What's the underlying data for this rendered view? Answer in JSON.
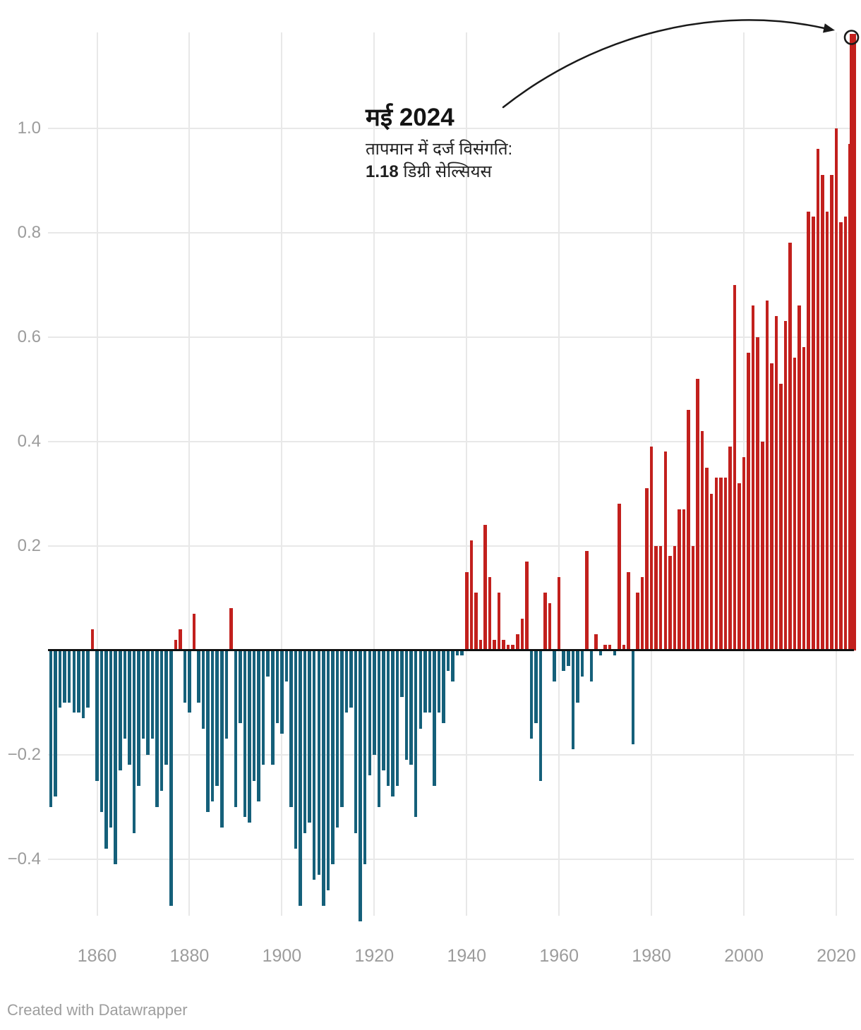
{
  "annotation": {
    "title": "मई 2024",
    "line1": "तापमान में दर्ज विसंगति:",
    "value_bold": "1.18",
    "value_suffix": " डिग्री सेल्सियस"
  },
  "footer": {
    "credit": "Created with Datawrapper"
  },
  "chart_data": {
    "type": "bar",
    "title": "मई 2024",
    "subtitle": "तापमान में दर्ज विसंगति: 1.18 डिग्री सेल्सियस",
    "xlabel": "",
    "ylabel": "",
    "x_start": 1850,
    "x_end": 2024,
    "ylim": [
      -0.55,
      1.2
    ],
    "grid": true,
    "legend": "none",
    "highlight_year": 2024,
    "highlight_value": 1.18,
    "y_ticks": [
      {
        "v": 1.0,
        "label": "1.0"
      },
      {
        "v": 0.8,
        "label": "0.8"
      },
      {
        "v": 0.6,
        "label": "0.6"
      },
      {
        "v": 0.4,
        "label": "0.4"
      },
      {
        "v": 0.2,
        "label": "0.2"
      },
      {
        "v": -0.2,
        "label": "−0.2"
      },
      {
        "v": -0.4,
        "label": "−0.4"
      }
    ],
    "x_ticks": [
      {
        "v": 1860,
        "label": "1860"
      },
      {
        "v": 1880,
        "label": "1880"
      },
      {
        "v": 1900,
        "label": "1900"
      },
      {
        "v": 1920,
        "label": "1920"
      },
      {
        "v": 1940,
        "label": "1940"
      },
      {
        "v": 1960,
        "label": "1960"
      },
      {
        "v": 1980,
        "label": "1980"
      },
      {
        "v": 2000,
        "label": "2000"
      },
      {
        "v": 2020,
        "label": "2020"
      }
    ],
    "values": [
      -0.3,
      -0.28,
      -0.11,
      -0.1,
      -0.1,
      -0.12,
      -0.12,
      -0.13,
      -0.11,
      0.04,
      -0.25,
      -0.31,
      -0.38,
      -0.34,
      -0.41,
      -0.23,
      -0.17,
      -0.22,
      -0.35,
      -0.26,
      -0.17,
      -0.2,
      -0.17,
      -0.3,
      -0.27,
      -0.22,
      -0.49,
      0.02,
      0.04,
      -0.1,
      -0.12,
      0.07,
      -0.1,
      -0.15,
      -0.31,
      -0.29,
      -0.26,
      -0.34,
      -0.17,
      0.08,
      -0.3,
      -0.14,
      -0.32,
      -0.33,
      -0.25,
      -0.29,
      -0.22,
      -0.05,
      -0.22,
      -0.14,
      -0.16,
      -0.06,
      -0.3,
      -0.38,
      -0.49,
      -0.35,
      -0.33,
      -0.44,
      -0.43,
      -0.49,
      -0.46,
      -0.41,
      -0.34,
      -0.3,
      -0.12,
      -0.11,
      -0.35,
      -0.52,
      -0.41,
      -0.24,
      -0.2,
      -0.3,
      -0.23,
      -0.26,
      -0.28,
      -0.26,
      -0.09,
      -0.21,
      -0.22,
      -0.32,
      -0.15,
      -0.12,
      -0.12,
      -0.26,
      -0.12,
      -0.14,
      -0.04,
      -0.06,
      -0.01,
      -0.01,
      0.15,
      0.21,
      0.11,
      0.02,
      0.24,
      0.14,
      0.02,
      0.11,
      0.02,
      0.01,
      0.01,
      0.03,
      0.06,
      0.17,
      -0.17,
      -0.14,
      -0.25,
      0.11,
      0.09,
      -0.06,
      0.14,
      -0.04,
      -0.03,
      -0.19,
      -0.1,
      -0.05,
      0.19,
      -0.06,
      0.03,
      -0.01,
      0.01,
      0.01,
      -0.01,
      0.28,
      0.01,
      0.15,
      -0.18,
      0.11,
      0.14,
      0.31,
      0.39,
      0.2,
      0.2,
      0.38,
      0.18,
      0.2,
      0.27,
      0.27,
      0.46,
      0.2,
      0.52,
      0.42,
      0.35,
      0.3,
      0.33,
      0.33,
      0.33,
      0.39,
      0.7,
      0.32,
      0.37,
      0.57,
      0.66,
      0.6,
      0.4,
      0.67,
      0.55,
      0.64,
      0.51,
      0.63,
      0.78,
      0.56,
      0.66,
      0.58,
      0.84,
      0.83,
      0.96,
      0.91,
      0.84,
      0.91,
      1.0,
      0.82,
      0.83,
      0.97,
      1.18
    ],
    "colors": {
      "positive": "#c2201d",
      "negative": "#15607a",
      "baseline": "#111111",
      "gridline": "#e8e8e8",
      "tick_label": "#9c9c9c",
      "annotation_ink": "#1a1a1a"
    }
  }
}
